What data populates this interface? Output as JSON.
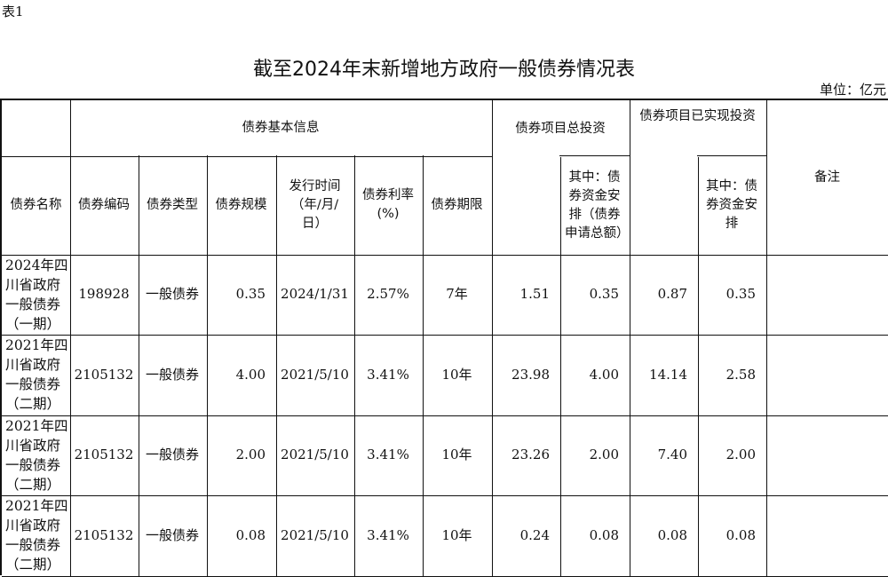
{
  "doc": {
    "tag": "表1",
    "title": "截至2024年末新增地方政府一般债券情况表",
    "unit": "单位：亿元"
  },
  "header": {
    "basic_info": "债券基本信息",
    "total_investment": "债券项目总投资",
    "realized_investment": "债券项目已实现投资",
    "remarks": "备注",
    "name": "债券名称",
    "code": "债券编码",
    "type": "债券类型",
    "scale": "债券规模",
    "issue_date": "发行时间（年/月/日）",
    "rate": "债券利率(%)",
    "term": "债券期限",
    "total_sub": "其中：债券资金安排（债券申请总额）",
    "realized_sub": "其中：债券资金安排"
  },
  "rows": [
    {
      "name": "2024年四川省政府一般债券（一期）",
      "code": "198928",
      "type": "一般债券",
      "scale": "0.35",
      "date": "2024/1/31",
      "rate": "2.57%",
      "term": "7年",
      "total": "1.51",
      "total_sub": "0.35",
      "realized": "0.87",
      "realized_sub": "0.35",
      "remarks": ""
    },
    {
      "name": "2021年四川省政府一般债券（二期）",
      "code": "2105132",
      "type": "一般债券",
      "scale": "4.00",
      "date": "2021/5/10",
      "rate": "3.41%",
      "term": "10年",
      "total": "23.98",
      "total_sub": "4.00",
      "realized": "14.14",
      "realized_sub": "2.58",
      "remarks": ""
    },
    {
      "name": "2021年四川省政府一般债券（二期）",
      "code": "2105132",
      "type": "一般债券",
      "scale": "2.00",
      "date": "2021/5/10",
      "rate": "3.41%",
      "term": "10年",
      "total": "23.26",
      "total_sub": "2.00",
      "realized": "7.40",
      "realized_sub": "2.00",
      "remarks": ""
    },
    {
      "name": "2021年四川省政府一般债券（二期）",
      "code": "2105132",
      "type": "一般债券",
      "scale": "0.08",
      "date": "2021/5/10",
      "rate": "3.41%",
      "term": "10年",
      "total": "0.24",
      "total_sub": "0.08",
      "realized": "0.08",
      "realized_sub": "0.08",
      "remarks": ""
    }
  ]
}
